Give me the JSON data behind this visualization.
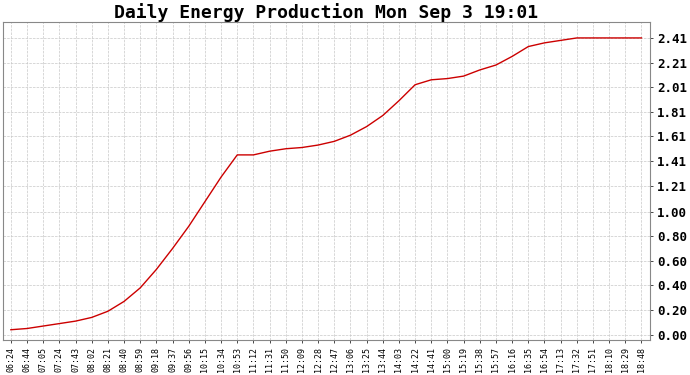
{
  "title": "Daily Energy Production Mon Sep 3 19:01",
  "offpeak_color": "#0000cc",
  "onpeak_color": "#cc0000",
  "line_color": "#cc0000",
  "bg_color": "#ffffff",
  "grid_color": "#c8c8c8",
  "title_fontsize": 13,
  "copyright_fontsize": 7.5,
  "legend_fontsize": 7.5,
  "ytick_fontsize": 9,
  "xtick_fontsize": 6,
  "yticks": [
    0.0,
    0.2,
    0.4,
    0.6,
    0.8,
    1.0,
    1.21,
    1.41,
    1.61,
    1.81,
    2.01,
    2.21,
    2.41
  ],
  "ylim": [
    -0.04,
    2.54
  ],
  "xtick_labels": [
    "06:24",
    "06:44",
    "07:05",
    "07:24",
    "07:43",
    "08:02",
    "08:21",
    "08:40",
    "08:59",
    "09:18",
    "09:37",
    "09:56",
    "10:15",
    "10:34",
    "10:53",
    "11:12",
    "11:31",
    "11:50",
    "12:09",
    "12:28",
    "12:47",
    "13:06",
    "13:25",
    "13:44",
    "14:03",
    "14:22",
    "14:41",
    "15:00",
    "15:19",
    "15:38",
    "15:57",
    "16:16",
    "16:35",
    "16:54",
    "17:13",
    "17:32",
    "17:51",
    "18:10",
    "18:29",
    "18:48"
  ],
  "y_values": [
    0.04,
    0.05,
    0.07,
    0.09,
    0.11,
    0.14,
    0.19,
    0.27,
    0.38,
    0.53,
    0.7,
    0.88,
    1.08,
    1.28,
    1.46,
    1.46,
    1.49,
    1.51,
    1.52,
    1.54,
    1.57,
    1.62,
    1.69,
    1.78,
    1.9,
    2.03,
    2.07,
    2.08,
    2.1,
    2.15,
    2.19,
    2.26,
    2.34,
    2.37,
    2.39,
    2.41,
    2.41,
    2.41,
    2.41,
    2.41
  ]
}
